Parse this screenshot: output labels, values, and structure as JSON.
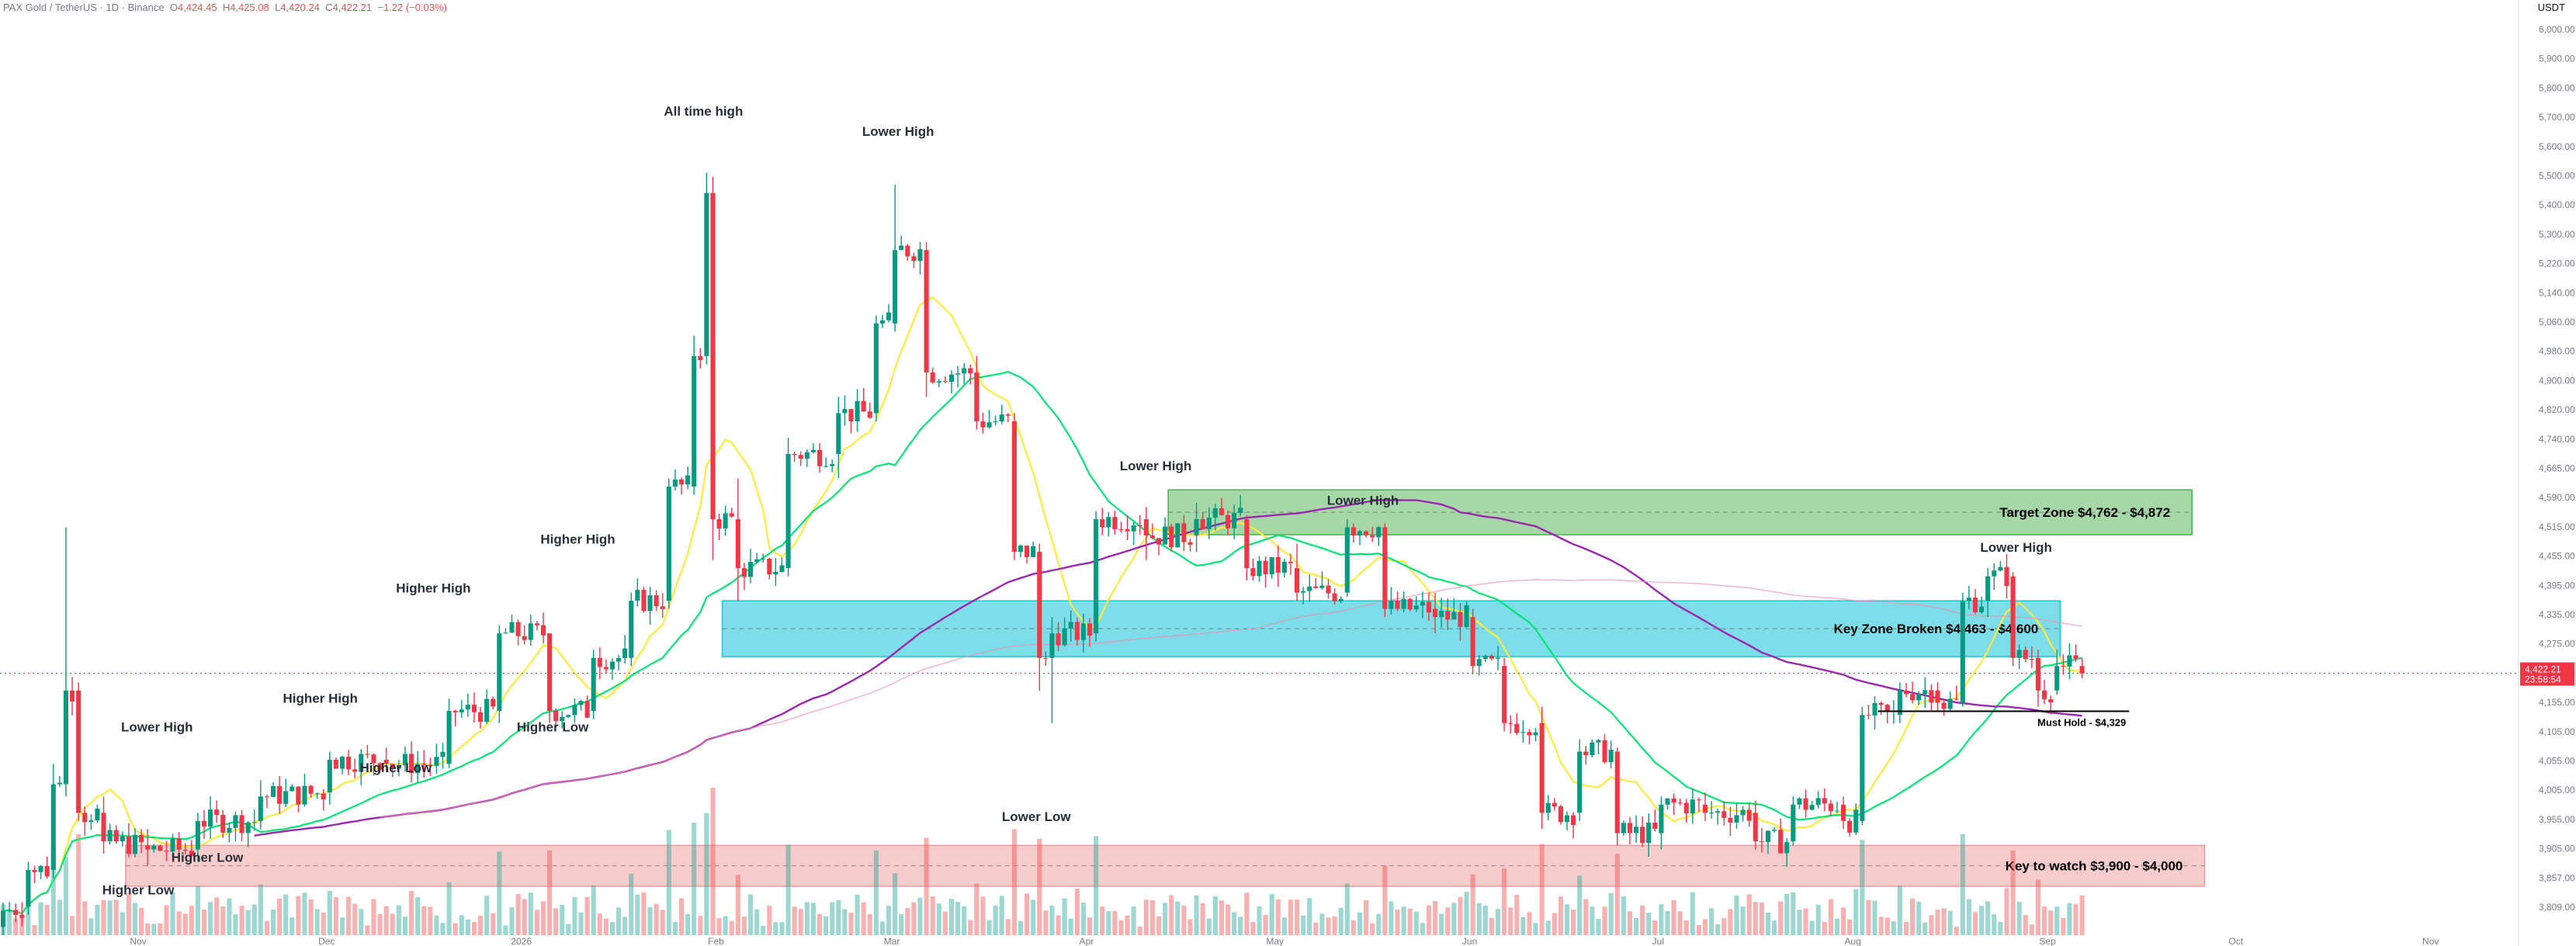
{
  "header": {
    "symbol": "PAX Gold / TetherUS · 1D · Binance",
    "open_label": "O",
    "open": "4,424.45",
    "high_label": "H",
    "high": "4,425.08",
    "low_label": "L",
    "low": "4,420.24",
    "close_label": "C",
    "close": "4,422.21",
    "change": "−1.22 (−0.03%)",
    "currency": "USDT"
  },
  "price_axis": {
    "labels": [
      "6,000.00",
      "5,900.00",
      "5,800.00",
      "5,700.00",
      "5,600.00",
      "5,500.00",
      "5,400.00",
      "5,300.00",
      "5,220.00",
      "5,140.00",
      "5,060.00",
      "4,980.00",
      "4,900.00",
      "4,820.00",
      "4,740.00",
      "4,665.00",
      "4,590.00",
      "4,515.00",
      "4,455.00",
      "4,395.00",
      "4,335.00",
      "4,275.00",
      "4,215.00",
      "4,155.00",
      "4,105.00",
      "4,055.00",
      "4,005.00",
      "3,955.00",
      "3,905.00",
      "3,857.00",
      "3,809.00"
    ],
    "current_price": "4,422.21",
    "countdown": "23:58:54"
  },
  "time_axis": {
    "labels": [
      "Nov",
      "Dec",
      "2026",
      "Feb",
      "Mar",
      "Apr",
      "May",
      "Jun",
      "Jul",
      "Aug",
      "Sep",
      "Oct",
      "Nov"
    ]
  },
  "chart_data": {
    "type": "candlestick",
    "title": "",
    "xlabel": "",
    "ylabel": "",
    "ylim": [
      3780,
      6020
    ],
    "x_range": [
      "2025-10-10",
      "2026-11-15"
    ],
    "ohlc_sample_daily": [
      [
        "2025-10-10",
        3800,
        3860,
        3780,
        3840
      ],
      [
        "2025-10-14",
        3850,
        3960,
        3830,
        3940
      ],
      [
        "2025-10-18",
        3940,
        4200,
        3920,
        4150
      ],
      [
        "2025-10-20",
        4150,
        4780,
        4120,
        4380
      ],
      [
        "2025-10-22",
        4380,
        4400,
        4060,
        4080
      ],
      [
        "2025-10-26",
        4080,
        4120,
        3980,
        4010
      ],
      [
        "2025-11-02",
        4000,
        4040,
        3950,
        3990
      ],
      [
        "2025-11-10",
        3990,
        4080,
        3960,
        4060
      ],
      [
        "2025-11-20",
        4060,
        4160,
        4040,
        4120
      ],
      [
        "2025-12-01",
        4130,
        4230,
        4100,
        4210
      ],
      [
        "2025-12-10",
        4210,
        4240,
        4180,
        4200
      ],
      [
        "2025-12-20",
        4200,
        4360,
        4190,
        4330
      ],
      [
        "2025-12-28",
        4330,
        4540,
        4300,
        4520
      ],
      [
        "2026-01-05",
        4520,
        4400,
        4300,
        4330
      ],
      [
        "2026-01-12",
        4330,
        4480,
        4310,
        4460
      ],
      [
        "2026-01-18",
        4460,
        4620,
        4440,
        4600
      ],
      [
        "2026-01-24",
        4600,
        4900,
        4580,
        4880
      ],
      [
        "2026-01-28",
        4880,
        5250,
        4860,
        5200
      ],
      [
        "2026-01-30",
        5200,
        5650,
        5180,
        5600
      ],
      [
        "2026-01-31",
        5600,
        5640,
        4700,
        4800
      ],
      [
        "2026-02-04",
        4800,
        4900,
        4600,
        4680
      ],
      [
        "2026-02-12",
        4680,
        5000,
        4660,
        4960
      ],
      [
        "2026-02-20",
        4960,
        5100,
        4900,
        5060
      ],
      [
        "2026-02-26",
        5060,
        5300,
        5040,
        5280
      ],
      [
        "2026-03-01",
        5280,
        5620,
        5260,
        5460
      ],
      [
        "2026-03-06",
        5460,
        5480,
        5100,
        5160
      ],
      [
        "2026-03-14",
        5160,
        5200,
        5020,
        5040
      ],
      [
        "2026-03-20",
        5040,
        5060,
        4700,
        4720
      ],
      [
        "2026-03-24",
        4720,
        4740,
        4380,
        4460
      ],
      [
        "2026-03-26",
        4460,
        4560,
        4300,
        4520
      ],
      [
        "2026-04-02",
        4520,
        4820,
        4500,
        4800
      ],
      [
        "2026-04-10",
        4800,
        4830,
        4700,
        4760
      ],
      [
        "2026-04-18",
        4760,
        4840,
        4720,
        4800
      ],
      [
        "2026-04-26",
        4800,
        4810,
        4650,
        4680
      ],
      [
        "2026-05-04",
        4680,
        4740,
        4600,
        4620
      ],
      [
        "2026-05-12",
        4620,
        4800,
        4610,
        4780
      ],
      [
        "2026-05-18",
        4780,
        4790,
        4560,
        4580
      ],
      [
        "2026-05-26",
        4580,
        4620,
        4520,
        4560
      ],
      [
        "2026-06-01",
        4560,
        4580,
        4420,
        4440
      ],
      [
        "2026-06-06",
        4440,
        4460,
        4280,
        4300
      ],
      [
        "2026-06-12",
        4300,
        4340,
        4040,
        4080
      ],
      [
        "2026-06-18",
        4080,
        4260,
        4060,
        4230
      ],
      [
        "2026-06-24",
        4230,
        4240,
        4000,
        4030
      ],
      [
        "2026-07-01",
        4030,
        4120,
        3990,
        4100
      ],
      [
        "2026-07-08",
        4100,
        4130,
        4060,
        4080
      ],
      [
        "2026-07-16",
        4080,
        4110,
        3990,
        4010
      ],
      [
        "2026-07-22",
        4010,
        4120,
        4000,
        4100
      ],
      [
        "2026-07-30",
        4100,
        4120,
        4040,
        4060
      ],
      [
        "2026-08-02",
        4060,
        4340,
        4050,
        4320
      ],
      [
        "2026-08-08",
        4320,
        4400,
        4300,
        4380
      ],
      [
        "2026-08-14",
        4380,
        4400,
        4330,
        4350
      ],
      [
        "2026-08-18",
        4350,
        4620,
        4340,
        4600
      ],
      [
        "2026-08-22",
        4600,
        4680,
        4560,
        4660
      ],
      [
        "2026-08-26",
        4660,
        4670,
        4440,
        4460
      ],
      [
        "2026-08-30",
        4460,
        4480,
        4340,
        4380
      ],
      [
        "2026-09-02",
        4380,
        4480,
        4370,
        4440
      ],
      [
        "2026-09-06",
        4440,
        4460,
        4410,
        4422
      ]
    ],
    "zones": [
      {
        "label": "Target Zone $4,762 - $4,872",
        "from": 4762,
        "to": 4872,
        "color": "#4caf50"
      },
      {
        "label": "Key Zone Broken $4,463 - $4,600",
        "from": 4463,
        "to": 4600,
        "color": "#26c6da"
      },
      {
        "label": "Key to watch $3,900 - $4,000",
        "from": 3900,
        "to": 4000,
        "color": "#ef9a9a"
      }
    ],
    "levels": [
      {
        "label": "Must Hold - $4,329",
        "value": 4329
      }
    ],
    "annotations": [
      {
        "text": "All time high",
        "date": "2026-01-30",
        "price": 5790
      },
      {
        "text": "Lower High",
        "date": "2026-03-02",
        "price": 5740
      },
      {
        "text": "Lower High",
        "date": "2026-04-12",
        "price": 4920
      },
      {
        "text": "Lower High",
        "date": "2026-05-15",
        "price": 4835
      },
      {
        "text": "Lower High",
        "date": "2026-08-27",
        "price": 4720
      },
      {
        "text": "Higher High",
        "date": "2026-01-10",
        "price": 4740
      },
      {
        "text": "Higher High",
        "date": "2025-12-18",
        "price": 4620
      },
      {
        "text": "Higher High",
        "date": "2025-11-30",
        "price": 4350
      },
      {
        "text": "Lower High",
        "date": "2025-11-04",
        "price": 4280
      },
      {
        "text": "Higher Low",
        "date": "2026-01-06",
        "price": 4280
      },
      {
        "text": "Higher Low",
        "date": "2025-12-12",
        "price": 4180
      },
      {
        "text": "Lower Low",
        "date": "2026-03-24",
        "price": 4060
      },
      {
        "text": "Higher Low",
        "date": "2025-11-12",
        "price": 3960
      },
      {
        "text": "Higher Low",
        "date": "2025-11-01",
        "price": 3880
      }
    ],
    "series": [
      {
        "name": "",
        "color": "#ffeb3b"
      },
      {
        "name": "",
        "color": "#00e676"
      },
      {
        "name": "",
        "color": "#9c27b0"
      },
      {
        "name": "",
        "color": "#f48fb1"
      }
    ]
  }
}
